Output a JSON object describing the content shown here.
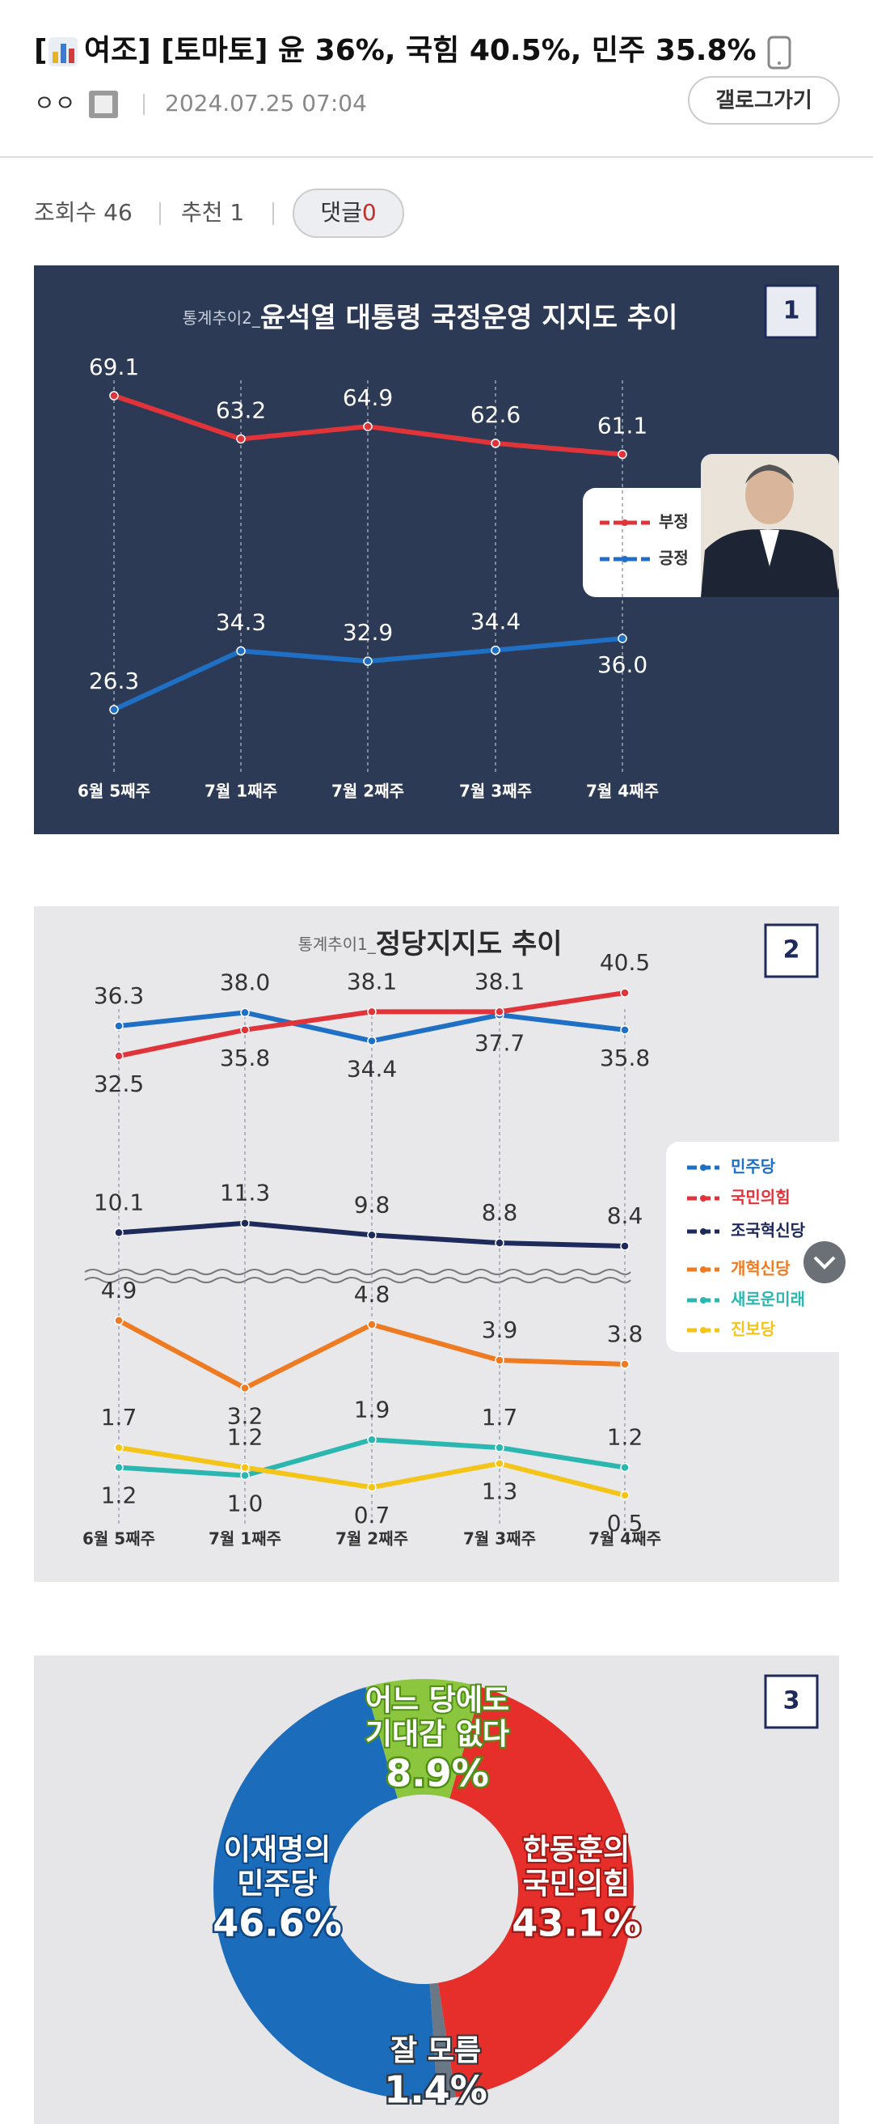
{
  "header": {
    "title_open": "[",
    "title": "여조] [토마토] 윤 36%, 국힘 40.5%, 민주 35.8%",
    "author": "ㅇㅇ",
    "date": "2024.07.25 07:04",
    "gallog_button": "갤로그가기"
  },
  "stats": {
    "views": "조회수 46",
    "recommend": "추천 1",
    "comments_label": "댓글",
    "comments_count": "0"
  },
  "chart_data": [
    {
      "type": "line",
      "badge": "1",
      "title_prefix": "통계추이2_",
      "title": "윤석열 대통령 국정운영 지지도 추이",
      "categories": [
        "6월 5째주",
        "7월 1째주",
        "7월 2째주",
        "7월 3째주",
        "7월 4째주"
      ],
      "series": [
        {
          "name": "부정",
          "color": "#e0343a",
          "values": [
            69.1,
            63.2,
            64.9,
            62.6,
            61.1
          ]
        },
        {
          "name": "긍정",
          "color": "#1f6fc4",
          "values": [
            26.3,
            34.3,
            32.9,
            34.4,
            36.0
          ],
          "value_labels": [
            "26.3",
            "34.3",
            "32.9",
            "34.4",
            "36.0"
          ]
        }
      ]
    },
    {
      "type": "line",
      "badge": "2",
      "title_prefix": "통계추이1_",
      "title": "정당지지도 추이",
      "broken_axis": true,
      "categories": [
        "6월 5째주",
        "7월 1째주",
        "7월 2째주",
        "7월 3째주",
        "7월 4째주"
      ],
      "series": [
        {
          "name": "민주당",
          "color": "#1f6fc4",
          "values": [
            36.3,
            38.0,
            34.4,
            37.7,
            35.8
          ],
          "value_labels": [
            "36.3",
            "38.0",
            "34.4",
            "37.7",
            "35.8"
          ]
        },
        {
          "name": "국민의힘",
          "color": "#e0343a",
          "values": [
            32.5,
            35.8,
            38.1,
            38.1,
            40.5
          ]
        },
        {
          "name": "조국혁신당",
          "color": "#1e2a5a",
          "values": [
            10.1,
            11.3,
            9.8,
            8.8,
            8.4
          ]
        },
        {
          "name": "개혁신당",
          "color": "#ee7a22",
          "values": [
            4.9,
            3.2,
            4.8,
            3.9,
            3.8
          ],
          "axis": "y2"
        },
        {
          "name": "새로운미래",
          "color": "#2bb7b0",
          "values": [
            1.2,
            1.0,
            1.9,
            1.7,
            1.2
          ],
          "value_labels": [
            "1.2",
            "1.0",
            "1.9",
            "1.7",
            "1.2"
          ],
          "axis": "y2"
        },
        {
          "name": "진보당",
          "color": "#f4c518",
          "values": [
            1.7,
            1.2,
            0.7,
            1.3,
            0.5
          ],
          "axis": "y2"
        }
      ]
    },
    {
      "type": "pie",
      "badge": "3",
      "donut": true,
      "categories": [
        [
          "어느 당에도",
          "기대감 없다"
        ],
        [
          "한동훈의",
          "국민의힘"
        ],
        [
          "잘 모름"
        ],
        [
          "이재명의",
          "민주당"
        ]
      ],
      "values": [
        8.9,
        43.1,
        1.4,
        46.6
      ],
      "value_labels": [
        "8.9%",
        "43.1%",
        "1.4%",
        "46.6%"
      ],
      "colors": [
        "#8cc63f",
        "#e62e2b",
        "#6a7785",
        "#1c6cbc"
      ]
    }
  ]
}
